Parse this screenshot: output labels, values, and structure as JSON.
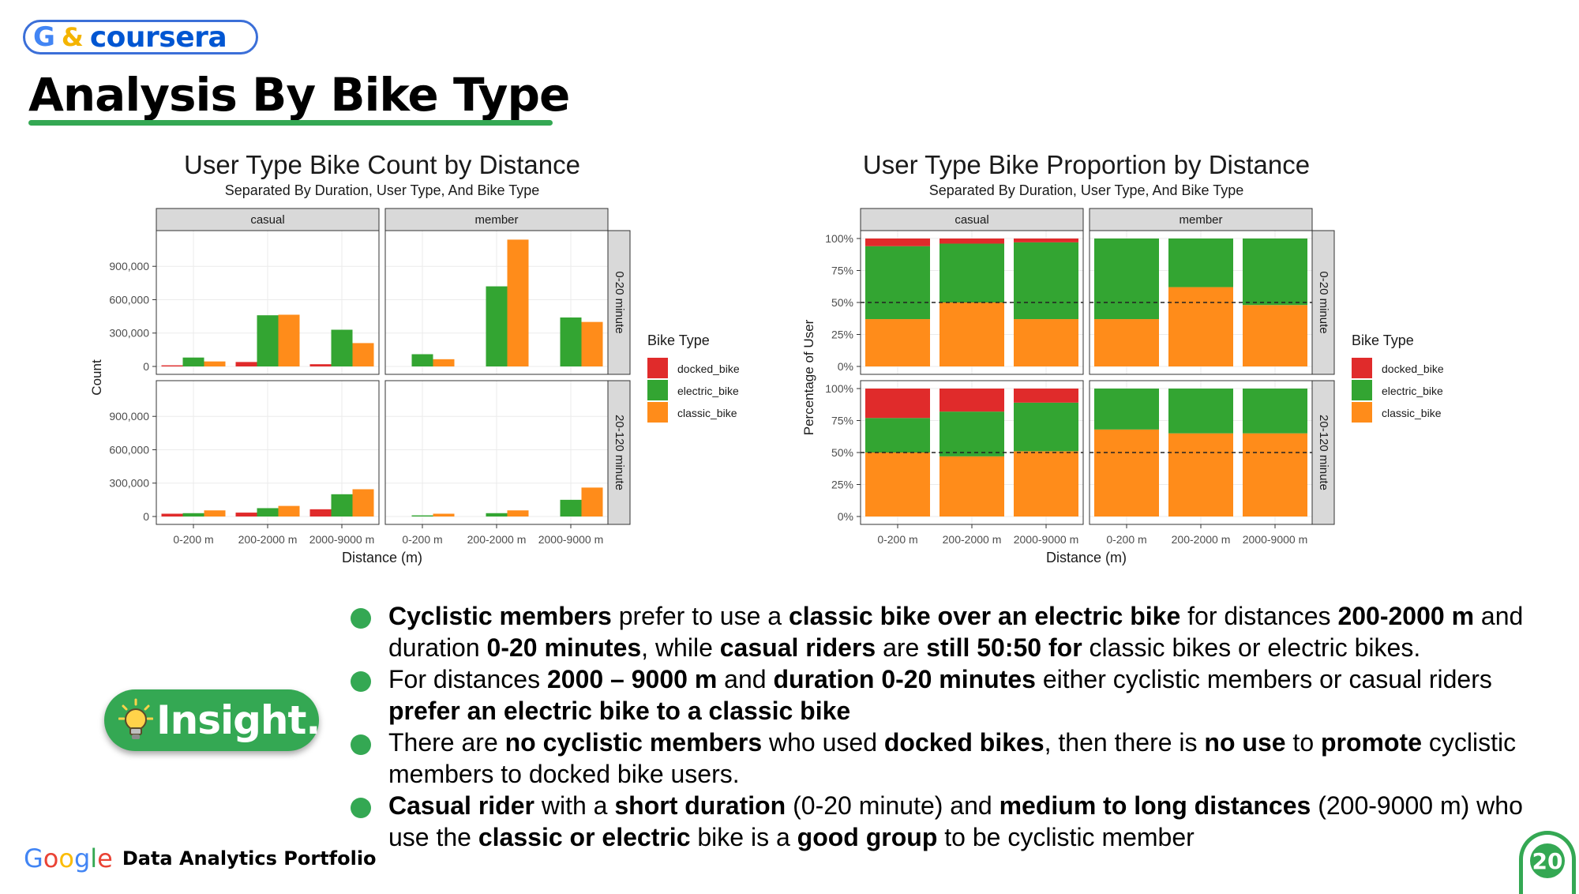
{
  "brand": {
    "g": "G",
    "amp": "&",
    "word": "coursera"
  },
  "slide": {
    "title": "Analysis By Bike Type",
    "page_number": "20"
  },
  "footer": {
    "google": "Google",
    "text": "Data Analytics Portfolio"
  },
  "insight_label": "Insight.",
  "colors": {
    "docked_bike": "#e02b2b",
    "electric_bike": "#33a532",
    "classic_bike": "#ff8c1a",
    "accent": "#34a853"
  },
  "bullets": [
    [
      {
        "t": "Cyclistic members",
        "b": true
      },
      {
        "t": " prefer to use a "
      },
      {
        "t": "classic bike over an electric bike",
        "b": true
      },
      {
        "t": " for distances "
      },
      {
        "t": "200-2000 m",
        "b": true
      },
      {
        "t": " and duration "
      },
      {
        "t": "0-20 minutes",
        "b": true
      },
      {
        "t": ", while "
      },
      {
        "t": "casual riders",
        "b": true
      },
      {
        "t": " are "
      },
      {
        "t": "still 50:50 for",
        "b": true
      },
      {
        "t": " classic bikes or electric bikes."
      }
    ],
    [
      {
        "t": "For distances "
      },
      {
        "t": "2000 – 9000 m",
        "b": true
      },
      {
        "t": " and "
      },
      {
        "t": "duration 0-20 minutes",
        "b": true
      },
      {
        "t": " either cyclistic members or casual riders "
      },
      {
        "t": "prefer an electric bike to a classic bike",
        "b": true
      }
    ],
    [
      {
        "t": "There are "
      },
      {
        "t": "no cyclistic members",
        "b": true
      },
      {
        "t": " who used "
      },
      {
        "t": "docked bikes",
        "b": true
      },
      {
        "t": ", then there is "
      },
      {
        "t": "no use",
        "b": true
      },
      {
        "t": " to "
      },
      {
        "t": "promote",
        "b": true
      },
      {
        "t": " cyclistic members to docked bike users."
      }
    ],
    [
      {
        "t": "Casual rider",
        "b": true
      },
      {
        "t": " with a "
      },
      {
        "t": "short duration",
        "b": true
      },
      {
        "t": " (0-20 minute) and "
      },
      {
        "t": "medium to long distances",
        "b": true
      },
      {
        "t": " (200-9000 m) who use the "
      },
      {
        "t": "classic or electric",
        "b": true
      },
      {
        "t": " bike is a "
      },
      {
        "t": "good group",
        "b": true
      },
      {
        "t": " to be cyclistic member"
      }
    ]
  ],
  "chart_data": [
    {
      "type": "bar",
      "title": "User Type Bike Count by Distance",
      "subtitle": "Separated By Duration, User Type, And Bike Type",
      "xlabel": "Distance (m)",
      "ylabel": "Count",
      "categories": [
        "0-200 m",
        "200-2000 m",
        "2000-9000 m"
      ],
      "facet_cols": [
        "casual",
        "member"
      ],
      "facet_rows": [
        "0-20 minute",
        "20-120 minute"
      ],
      "ylim": [
        0,
        1150000
      ],
      "yticks": [
        0,
        300000,
        600000,
        900000
      ],
      "ytick_labels": [
        "0",
        "300,000",
        "600,000",
        "900,000"
      ],
      "legend": {
        "title": "Bike Type",
        "position": "right",
        "entries": [
          "docked_bike",
          "electric_bike",
          "classic_bike"
        ]
      },
      "panels": [
        {
          "col": "casual",
          "row": "0-20 minute",
          "series": [
            {
              "name": "docked_bike",
              "values": [
                10000,
                40000,
                20000
              ]
            },
            {
              "name": "electric_bike",
              "values": [
                80000,
                460000,
                330000
              ]
            },
            {
              "name": "classic_bike",
              "values": [
                45000,
                465000,
                210000
              ]
            }
          ]
        },
        {
          "col": "member",
          "row": "0-20 minute",
          "series": [
            {
              "name": "electric_bike",
              "values": [
                110000,
                720000,
                440000
              ]
            },
            {
              "name": "classic_bike",
              "values": [
                65000,
                1140000,
                400000
              ]
            }
          ]
        },
        {
          "col": "casual",
          "row": "20-120 minute",
          "series": [
            {
              "name": "docked_bike",
              "values": [
                25000,
                35000,
                65000
              ]
            },
            {
              "name": "electric_bike",
              "values": [
                30000,
                75000,
                200000
              ]
            },
            {
              "name": "classic_bike",
              "values": [
                55000,
                95000,
                245000
              ]
            }
          ]
        },
        {
          "col": "member",
          "row": "20-120 minute",
          "series": [
            {
              "name": "electric_bike",
              "values": [
                10000,
                30000,
                150000
              ]
            },
            {
              "name": "classic_bike",
              "values": [
                25000,
                55000,
                260000
              ]
            }
          ]
        }
      ]
    },
    {
      "type": "bar",
      "stacked": true,
      "title": "User Type Bike Proportion by Distance",
      "subtitle": "Separated By Duration, User Type, And Bike Type",
      "xlabel": "Distance (m)",
      "ylabel": "Percentage of User",
      "categories": [
        "0-200 m",
        "200-2000 m",
        "2000-9000 m"
      ],
      "facet_cols": [
        "casual",
        "member"
      ],
      "facet_rows": [
        "0-20 minute",
        "20-120 minute"
      ],
      "ylim": [
        0,
        100
      ],
      "yticks": [
        0,
        25,
        50,
        75,
        100
      ],
      "ytick_labels": [
        "0%",
        "25%",
        "50%",
        "75%",
        "100%"
      ],
      "reference_line": 50,
      "legend": {
        "title": "Bike Type",
        "position": "right",
        "entries": [
          "docked_bike",
          "electric_bike",
          "classic_bike"
        ]
      },
      "panels": [
        {
          "col": "casual",
          "row": "0-20 minute",
          "series": [
            {
              "name": "classic_bike",
              "values": [
                37,
                50,
                37
              ]
            },
            {
              "name": "electric_bike",
              "values": [
                57,
                46,
                60
              ]
            },
            {
              "name": "docked_bike",
              "values": [
                6,
                4,
                3
              ]
            }
          ]
        },
        {
          "col": "member",
          "row": "0-20 minute",
          "series": [
            {
              "name": "classic_bike",
              "values": [
                37,
                62,
                48
              ]
            },
            {
              "name": "electric_bike",
              "values": [
                63,
                38,
                52
              ]
            }
          ]
        },
        {
          "col": "casual",
          "row": "20-120 minute",
          "series": [
            {
              "name": "classic_bike",
              "values": [
                50,
                47,
                51
              ]
            },
            {
              "name": "electric_bike",
              "values": [
                27,
                35,
                38
              ]
            },
            {
              "name": "docked_bike",
              "values": [
                23,
                18,
                11
              ]
            }
          ]
        },
        {
          "col": "member",
          "row": "20-120 minute",
          "series": [
            {
              "name": "classic_bike",
              "values": [
                68,
                65,
                65
              ]
            },
            {
              "name": "electric_bike",
              "values": [
                32,
                35,
                35
              ]
            }
          ]
        }
      ]
    }
  ]
}
